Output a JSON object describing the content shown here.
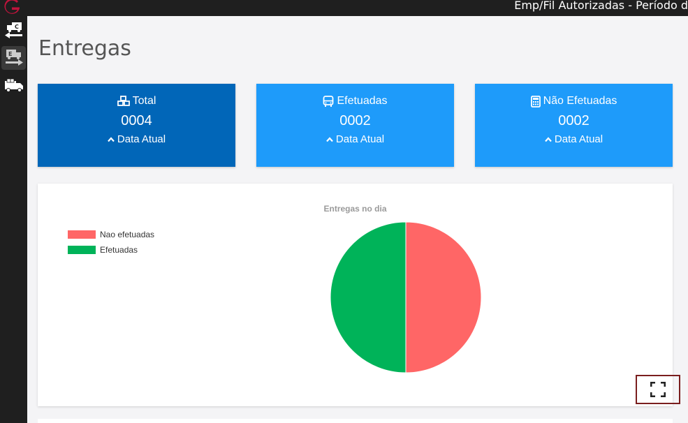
{
  "topbar": {
    "title": "Emp/Fil Autorizadas - Período d",
    "logo_icon": "g-logo-icon"
  },
  "sidebar": {
    "items": [
      {
        "icon": "truck-return-icon",
        "active": false
      },
      {
        "icon": "truck-forward-icon",
        "active": true
      },
      {
        "icon": "delivery-truck-icon",
        "active": false
      }
    ]
  },
  "page": {
    "title": "Entregas"
  },
  "cards": [
    {
      "icon": "cubes-icon",
      "title": "Total",
      "value": "0004",
      "sub": "Data Atual",
      "color": "#0166b8"
    },
    {
      "icon": "bus-icon",
      "title": "Efetuadas",
      "value": "0002",
      "sub": "Data Atual",
      "color": "#1e9bfa"
    },
    {
      "icon": "calculator-icon",
      "title": "Não Efetuadas",
      "value": "0002",
      "sub": "Data Atual",
      "color": "#1e9bfa"
    }
  ],
  "chart_data": {
    "type": "pie",
    "title": "Entregas no dia",
    "legend_position": "top-left",
    "categories": [
      "Nao efetuadas",
      "Efetuadas"
    ],
    "values": [
      2,
      2
    ],
    "colors": [
      "#ff6666",
      "#00b359"
    ]
  },
  "controls": {
    "fullscreen_icon": "fullscreen-icon"
  }
}
